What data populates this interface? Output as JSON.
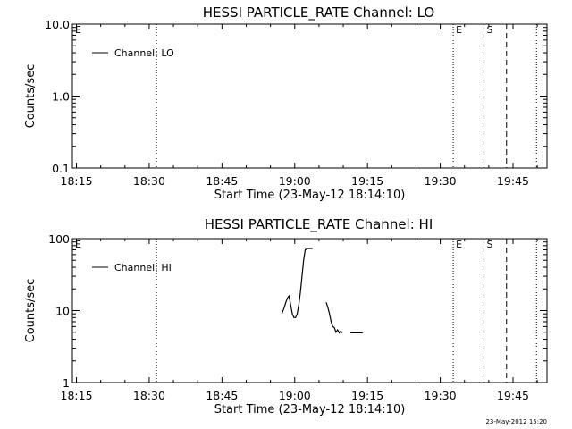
{
  "footer": {
    "timestamp": "23-May-2012 15:20"
  },
  "chart_data": [
    {
      "type": "line",
      "title": "HESSI PARTICLE_RATE Channel: LO",
      "xlabel": "Start Time (23-May-12 18:14:10)",
      "ylabel": "Counts/sec",
      "yscale": "log",
      "ylim": [
        0.1,
        10.0
      ],
      "xlim": [
        "18:14:10",
        "19:52:00"
      ],
      "x_ticks": [
        "18:15",
        "18:30",
        "18:45",
        "19:00",
        "19:15",
        "19:30",
        "19:45"
      ],
      "y_ticks": [
        "0.1",
        "1.0",
        "10.0"
      ],
      "legend": {
        "position": "top-left",
        "entries": [
          "Channel: LO"
        ]
      },
      "series": [
        {
          "name": "Channel: LO",
          "x": [],
          "y": []
        }
      ],
      "markers": [
        {
          "time": "18:14:10",
          "style": "none",
          "label": "E"
        },
        {
          "time": "18:31:30",
          "style": "dotted",
          "label": ""
        },
        {
          "time": "19:32:40",
          "style": "dotted",
          "label": "E"
        },
        {
          "time": "19:39:00",
          "style": "dashed",
          "label": "S"
        },
        {
          "time": "19:43:40",
          "style": "dashed",
          "label": ""
        },
        {
          "time": "19:49:50",
          "style": "dotted",
          "label": ""
        }
      ]
    },
    {
      "type": "line",
      "title": "HESSI PARTICLE_RATE Channel: HI",
      "xlabel": "Start Time (23-May-12 18:14:10)",
      "ylabel": "Counts/sec",
      "yscale": "log",
      "ylim": [
        1,
        100
      ],
      "xlim": [
        "18:14:10",
        "19:52:00"
      ],
      "x_ticks": [
        "18:15",
        "18:30",
        "18:45",
        "19:00",
        "19:15",
        "19:30",
        "19:45"
      ],
      "y_ticks": [
        "1",
        "10",
        "100"
      ],
      "legend": {
        "position": "top-left",
        "entries": [
          "Channel: HI"
        ]
      },
      "series": [
        {
          "name": "Channel: HI",
          "segments": [
            {
              "x": [
                "18:57:20",
                "18:57:50",
                "18:58:10",
                "18:58:30",
                "18:58:50",
                "18:59:10",
                "18:59:30",
                "18:59:50",
                "19:00:10",
                "19:00:30",
                "19:00:50",
                "19:01:10",
                "19:01:30",
                "19:01:50",
                "19:02:10",
                "19:02:40",
                "19:03:10",
                "19:03:40"
              ],
              "y": [
                9,
                11,
                13,
                15,
                16,
                12,
                9,
                8,
                8,
                9,
                12,
                18,
                30,
                50,
                70,
                73,
                73,
                73
              ]
            },
            {
              "x": [
                "19:06:30",
                "19:06:50",
                "19:07:10",
                "19:07:30",
                "19:07:50",
                "19:08:10",
                "19:08:30",
                "19:08:50",
                "19:09:10",
                "19:09:30",
                "19:09:50"
              ],
              "y": [
                13,
                11,
                9,
                7,
                6,
                5.8,
                5,
                5.4,
                4.9,
                5.2,
                4.9
              ]
            },
            {
              "x": [
                "19:11:30",
                "19:12:00",
                "19:12:30",
                "19:13:00",
                "19:13:30",
                "19:14:00"
              ],
              "y": [
                4.9,
                4.9,
                4.9,
                4.9,
                4.9,
                4.9
              ]
            }
          ]
        }
      ],
      "markers": [
        {
          "time": "18:14:10",
          "style": "none",
          "label": "E"
        },
        {
          "time": "18:31:30",
          "style": "dotted",
          "label": ""
        },
        {
          "time": "19:32:40",
          "style": "dotted",
          "label": "E"
        },
        {
          "time": "19:39:00",
          "style": "dashed",
          "label": "S"
        },
        {
          "time": "19:43:40",
          "style": "dashed",
          "label": ""
        },
        {
          "time": "19:49:50",
          "style": "dotted",
          "label": ""
        }
      ]
    }
  ]
}
